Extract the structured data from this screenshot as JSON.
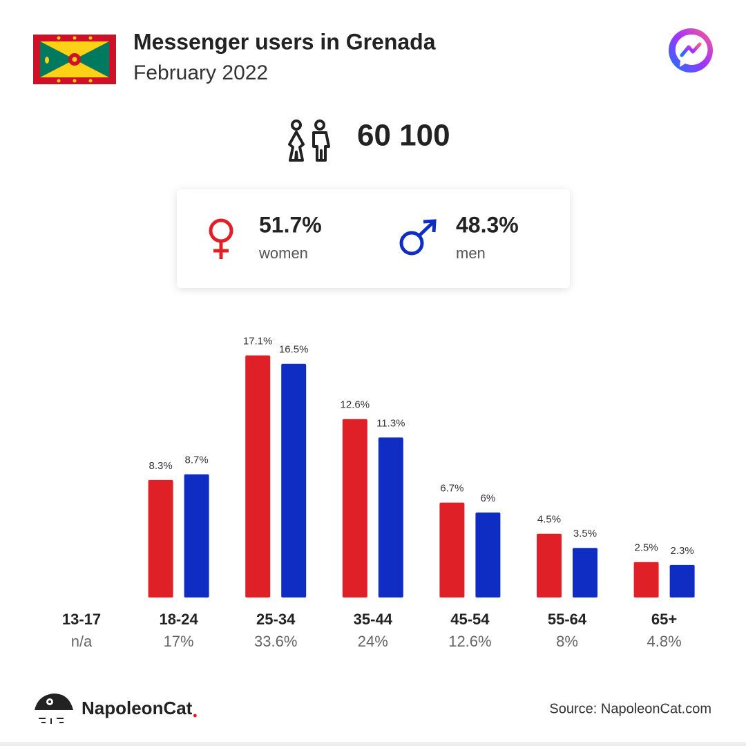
{
  "header": {
    "title": "Messenger users in Grenada",
    "subtitle": "February 2022"
  },
  "total": "60 100",
  "gender": {
    "women": "51.7%",
    "men": "48.3%"
  },
  "chart_data": {
    "type": "bar",
    "categories": [
      "13-17",
      "18-24",
      "25-34",
      "35-44",
      "45-54",
      "55-64",
      "65+"
    ],
    "category_totals": [
      "n/a",
      "17%",
      "33.6%",
      "24%",
      "12.6%",
      "8%",
      "4.8%"
    ],
    "series": [
      {
        "name": "women",
        "color": "#e02027",
        "values": [
          null,
          8.3,
          17.1,
          12.6,
          6.7,
          4.5,
          2.5
        ],
        "value_labels": [
          null,
          "8.3%",
          "17.1%",
          "12.6%",
          "6.7%",
          "4.5%",
          "2.5%"
        ]
      },
      {
        "name": "men",
        "color": "#0f2dc2",
        "values": [
          null,
          8.7,
          16.5,
          11.3,
          6,
          3.5,
          2.3
        ],
        "value_labels": [
          null,
          "8.7%",
          "16.5%",
          "11.3%",
          "6%",
          "3.5%",
          "2.3%"
        ]
      }
    ]
  },
  "footer": {
    "brand": "NapoleonCat",
    "source": "Source: NapoleonCat.com"
  }
}
